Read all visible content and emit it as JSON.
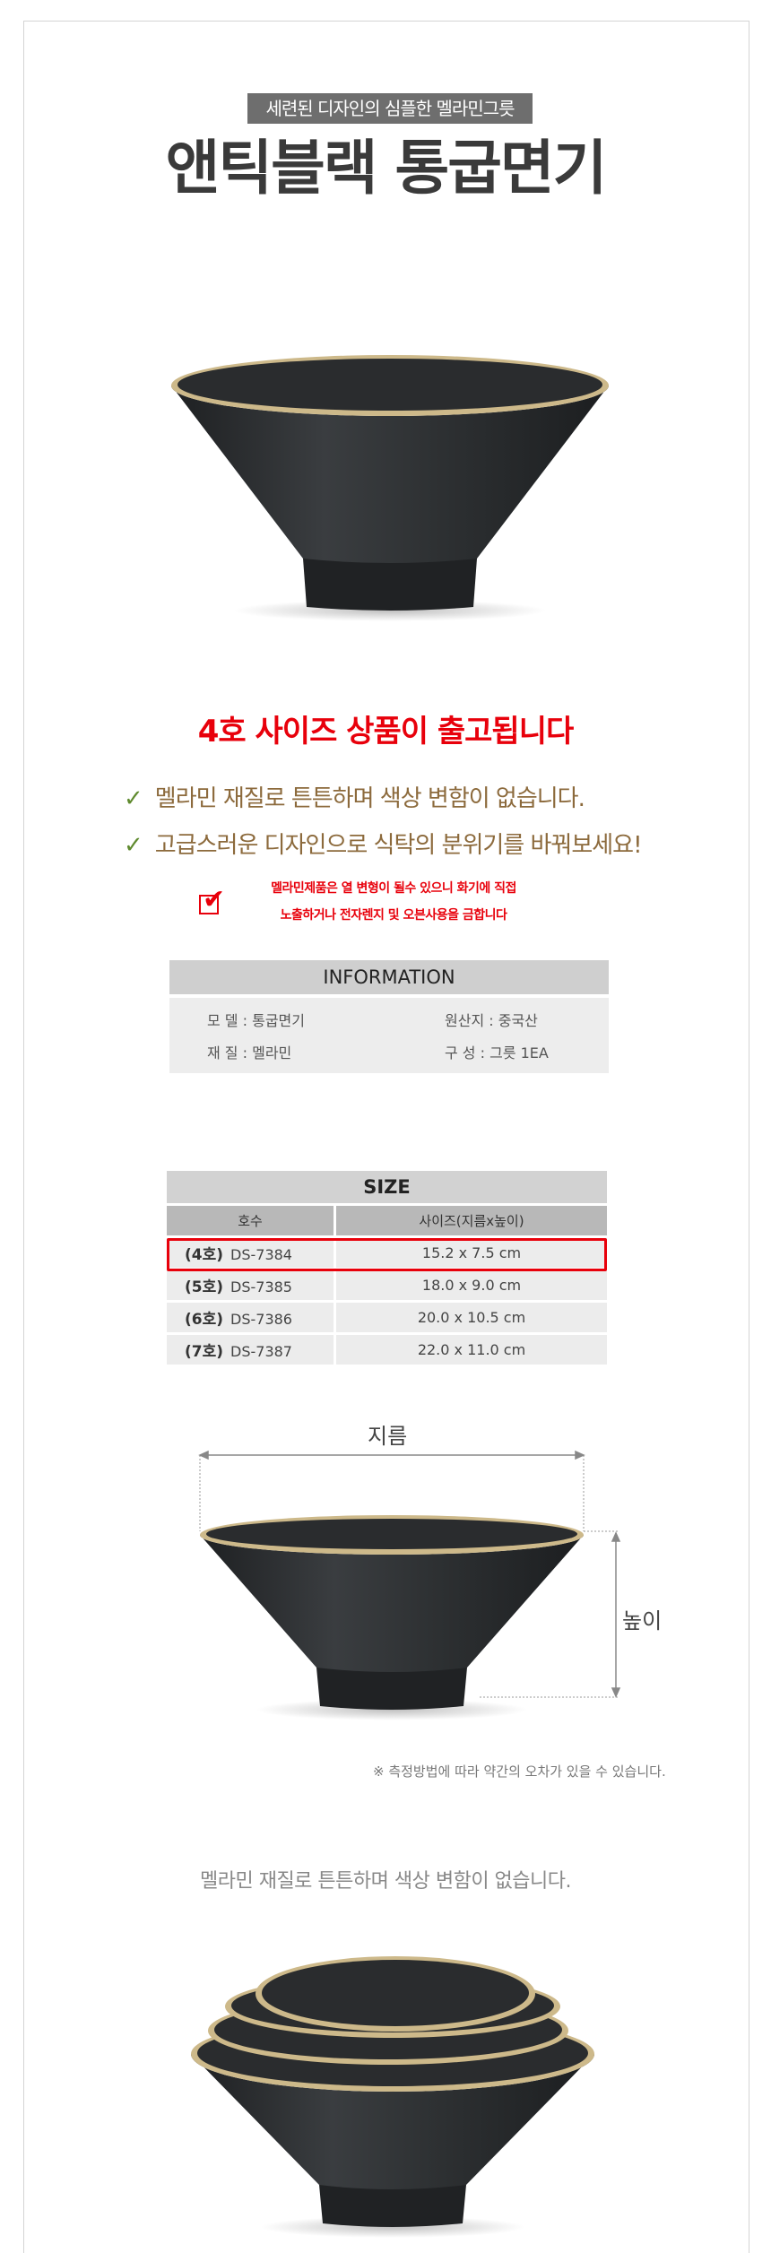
{
  "header": {
    "subtitle": "세련된 디자인의 심플한 멜라민그릇",
    "title": "앤틱블랙 통굽면기"
  },
  "headline": "4호 사이즈 상품이 출고됩니다",
  "features": [
    {
      "icon": "check-icon",
      "mark": "✓",
      "text": "멜라민 재질로 튼튼하며 색상 변함이 없습니다."
    },
    {
      "icon": "check-icon",
      "mark": "✓",
      "text": "고급스러운 디자인으로 식탁의 분위기를 바꿔보세요!"
    }
  ],
  "warning": {
    "icon": "checkbox-checked-icon",
    "mark": "✔",
    "lines": [
      "멜라민제품은 열 변형이 될수 있으니 화기에 직접",
      "노출하거나 전자렌지 및 오븐사용을 금합니다"
    ]
  },
  "information": {
    "title": "INFORMATION",
    "items": [
      {
        "label": "모  델",
        "value": "통굽면기"
      },
      {
        "label": "원산지",
        "value": "중국산"
      },
      {
        "label": "재  질",
        "value": "멜라민"
      },
      {
        "label": "구  성",
        "value": "그릇 1EA"
      }
    ]
  },
  "size_table": {
    "title": "SIZE",
    "columns": [
      "호수",
      "사이즈(지름x높이)"
    ],
    "rows": [
      {
        "no": "(4호)",
        "code": "DS-7384",
        "size": "15.2 x 7.5 cm",
        "highlighted": true
      },
      {
        "no": "(5호)",
        "code": "DS-7385",
        "size": "18.0 x 9.0 cm",
        "highlighted": false
      },
      {
        "no": "(6호)",
        "code": "DS-7386",
        "size": "20.0 x 10.5 cm",
        "highlighted": false
      },
      {
        "no": "(7호)",
        "code": "DS-7387",
        "size": "22.0 x 11.0 cm",
        "highlighted": false
      }
    ]
  },
  "diagram": {
    "diameter_label": "지름",
    "height_label": "높이",
    "note": "※ 측정방법에 따라 약간의 오차가 있을 수 있습니다."
  },
  "caption": "멜라민 재질로 튼튼하며 색상 변함이 없습니다.",
  "colors": {
    "accent_red": "#e8000b",
    "feature_text": "#8c6a3c",
    "check_green": "#5f8a2e",
    "rim_gold": "#cdb98a",
    "bowl_black": "#2a2c2e"
  }
}
